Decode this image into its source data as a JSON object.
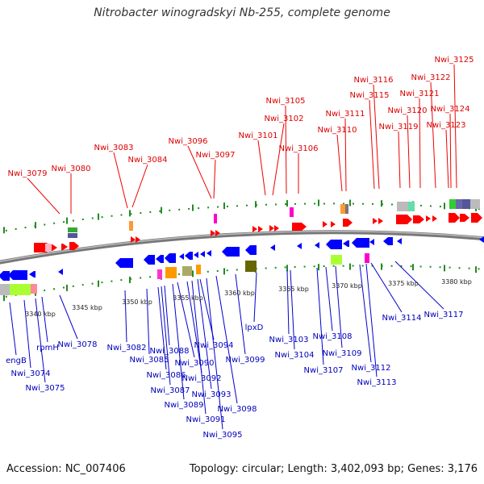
{
  "title": "Nitrobacter winogradskyi Nb-255, complete genome",
  "footer": {
    "accession": "Accession: NC_007406",
    "summary": "Topology: circular; Length: 3,402,093 bp; Genes: 3,176"
  },
  "colors": {
    "forward_gene": "#ff0000",
    "reverse_gene": "#0000ff",
    "forward_label": "#dd0000",
    "reverse_label": "#0000bb",
    "tick": "#228b22",
    "backbone": "#808080"
  },
  "scale_labels": [
    "3340 kbp",
    "3345 kbp",
    "3350 kbp",
    "3355 kbp",
    "3360 kbp",
    "3365 kbp",
    "3370 kbp",
    "3375 kbp",
    "3380 kbp"
  ],
  "top_genes": [
    "Nwi_3079",
    "Nwi_3080",
    "Nwi_3083",
    "Nwi_3084",
    "Nwi_3096",
    "Nwi_3097",
    "Nwi_3101",
    "Nwi_3102",
    "Nwi_3105",
    "Nwi_3106",
    "Nwi_3110",
    "Nwi_3111",
    "Nwi_3115",
    "Nwi_3116",
    "Nwi_3119",
    "Nwi_3120",
    "Nwi_3121",
    "Nwi_3122",
    "Nwi_3123",
    "Nwi_3124",
    "Nwi_3125"
  ],
  "bottom_genes": [
    "engB",
    "Nwi_3074",
    "Nwi_3075",
    "rpmH",
    "Nwi_3078",
    "Nwi_3082",
    "Nwi_3085",
    "Nwi_3086",
    "Nwi_3087",
    "Nwi_3088",
    "Nwi_3089",
    "Nwi_3090",
    "Nwi_3091",
    "Nwi_3092",
    "Nwi_3093",
    "Nwi_3094",
    "Nwi_3095",
    "Nwi_3098",
    "Nwi_3099",
    "lpxD",
    "Nwi_3103",
    "Nwi_3104",
    "Nwi_3107",
    "Nwi_3108",
    "Nwi_3109",
    "Nwi_3112",
    "Nwi_3113",
    "Nwi_3114",
    "Nwi_3117"
  ]
}
